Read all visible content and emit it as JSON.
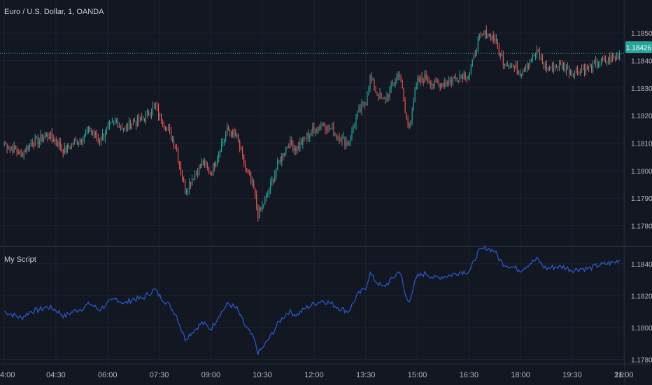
{
  "header": {
    "symbol_title": "Euro / U.S. Dollar, 1, OANDA"
  },
  "indicator": {
    "title": "My Script"
  },
  "colors": {
    "background": "#131722",
    "grid": "#1e2230",
    "axis_text": "#b2b5be",
    "title_text": "#c9ccd4",
    "up_candle": "#26a69a",
    "down_candle": "#ef5350",
    "price_line": "#26a69a",
    "indicator_line": "#2a56c6",
    "separator": "#2a2e39"
  },
  "chart_data": [
    {
      "type": "candlestick",
      "title": "Euro / U.S. Dollar, 1, OANDA",
      "x_ticks": [
        "4:00",
        "04:30",
        "06:00",
        "07:30",
        "09:00",
        "10:30",
        "12:00",
        "13:30",
        "15:00",
        "16:30",
        "18:00",
        "19:30",
        "21:00",
        "16"
      ],
      "y_ticks": [
        "1.17800",
        "1.17900",
        "1.18000",
        "1.18100",
        "1.18200",
        "1.18300",
        "1.18400",
        "1.18500"
      ],
      "ylim": [
        1.1773,
        1.1862
      ],
      "last_price": 1.18426,
      "last_price_label": "1.18426",
      "close_series": [
        {
          "t": 0.0,
          "v": 1.181
        },
        {
          "t": 0.5,
          "v": 1.1808
        },
        {
          "t": 1.0,
          "v": 1.1806
        },
        {
          "t": 1.5,
          "v": 1.181
        },
        {
          "t": 2.0,
          "v": 1.1811
        },
        {
          "t": 2.5,
          "v": 1.1813
        },
        {
          "t": 3.0,
          "v": 1.1811
        },
        {
          "t": 3.5,
          "v": 1.1807
        },
        {
          "t": 4.0,
          "v": 1.181
        },
        {
          "t": 4.5,
          "v": 1.1812
        },
        {
          "t": 5.0,
          "v": 1.1815
        },
        {
          "t": 5.5,
          "v": 1.1811
        },
        {
          "t": 6.0,
          "v": 1.1815
        },
        {
          "t": 6.5,
          "v": 1.1818
        },
        {
          "t": 7.0,
          "v": 1.1815
        },
        {
          "t": 7.5,
          "v": 1.1818
        },
        {
          "t": 8.0,
          "v": 1.1818
        },
        {
          "t": 8.5,
          "v": 1.1822
        },
        {
          "t": 8.75,
          "v": 1.1824
        },
        {
          "t": 9.0,
          "v": 1.182
        },
        {
          "t": 9.5,
          "v": 1.1815
        },
        {
          "t": 10.0,
          "v": 1.1808
        },
        {
          "t": 10.25,
          "v": 1.18
        },
        {
          "t": 10.5,
          "v": 1.1793
        },
        {
          "t": 11.0,
          "v": 1.1798
        },
        {
          "t": 11.5,
          "v": 1.1803
        },
        {
          "t": 12.0,
          "v": 1.1799
        },
        {
          "t": 12.5,
          "v": 1.1808
        },
        {
          "t": 13.0,
          "v": 1.1815
        },
        {
          "t": 13.5,
          "v": 1.1812
        },
        {
          "t": 14.0,
          "v": 1.1801
        },
        {
          "t": 14.5,
          "v": 1.1793
        },
        {
          "t": 14.75,
          "v": 1.1784
        },
        {
          "t": 15.0,
          "v": 1.1787
        },
        {
          "t": 15.5,
          "v": 1.1795
        },
        {
          "t": 16.0,
          "v": 1.1804
        },
        {
          "t": 16.5,
          "v": 1.181
        },
        {
          "t": 17.0,
          "v": 1.1808
        },
        {
          "t": 17.5,
          "v": 1.1812
        },
        {
          "t": 18.0,
          "v": 1.1815
        },
        {
          "t": 18.5,
          "v": 1.1817
        },
        {
          "t": 19.0,
          "v": 1.1815
        },
        {
          "t": 19.5,
          "v": 1.1812
        },
        {
          "t": 20.0,
          "v": 1.181
        },
        {
          "t": 20.5,
          "v": 1.182
        },
        {
          "t": 21.0,
          "v": 1.1825
        },
        {
          "t": 21.25,
          "v": 1.1834
        },
        {
          "t": 21.5,
          "v": 1.183
        },
        {
          "t": 22.0,
          "v": 1.1825
        },
        {
          "t": 22.5,
          "v": 1.183
        },
        {
          "t": 23.0,
          "v": 1.1836
        },
        {
          "t": 23.25,
          "v": 1.1822
        },
        {
          "t": 23.5,
          "v": 1.1815
        },
        {
          "t": 23.75,
          "v": 1.1825
        },
        {
          "t": 24.0,
          "v": 1.1832
        },
        {
          "t": 24.5,
          "v": 1.1834
        },
        {
          "t": 25.0,
          "v": 1.1831
        },
        {
          "t": 25.5,
          "v": 1.1832
        },
        {
          "t": 26.0,
          "v": 1.1833
        },
        {
          "t": 26.5,
          "v": 1.1835
        },
        {
          "t": 27.0,
          "v": 1.1835
        },
        {
          "t": 27.25,
          "v": 1.184
        },
        {
          "t": 27.5,
          "v": 1.1847
        },
        {
          "t": 28.0,
          "v": 1.185
        },
        {
          "t": 28.5,
          "v": 1.1848
        },
        {
          "t": 28.75,
          "v": 1.1843
        },
        {
          "t": 29.0,
          "v": 1.184
        },
        {
          "t": 29.5,
          "v": 1.1838
        },
        {
          "t": 30.0,
          "v": 1.1836
        },
        {
          "t": 30.5,
          "v": 1.184
        },
        {
          "t": 31.0,
          "v": 1.1843
        },
        {
          "t": 31.25,
          "v": 1.1839
        },
        {
          "t": 31.5,
          "v": 1.1837
        },
        {
          "t": 32.0,
          "v": 1.1838
        },
        {
          "t": 32.5,
          "v": 1.1838
        },
        {
          "t": 33.0,
          "v": 1.1836
        },
        {
          "t": 33.5,
          "v": 1.1837
        },
        {
          "t": 34.0,
          "v": 1.1837
        },
        {
          "t": 34.5,
          "v": 1.1839
        },
        {
          "t": 35.0,
          "v": 1.184
        },
        {
          "t": 35.5,
          "v": 1.1841
        },
        {
          "t": 35.75,
          "v": 1.18426
        }
      ]
    },
    {
      "type": "line",
      "title": "My Script",
      "y_ticks": [
        "1.17800",
        "1.18000",
        "1.18200",
        "1.18400"
      ],
      "ylim": [
        1.1778,
        1.185
      ],
      "note_series_matches_price": true
    }
  ]
}
